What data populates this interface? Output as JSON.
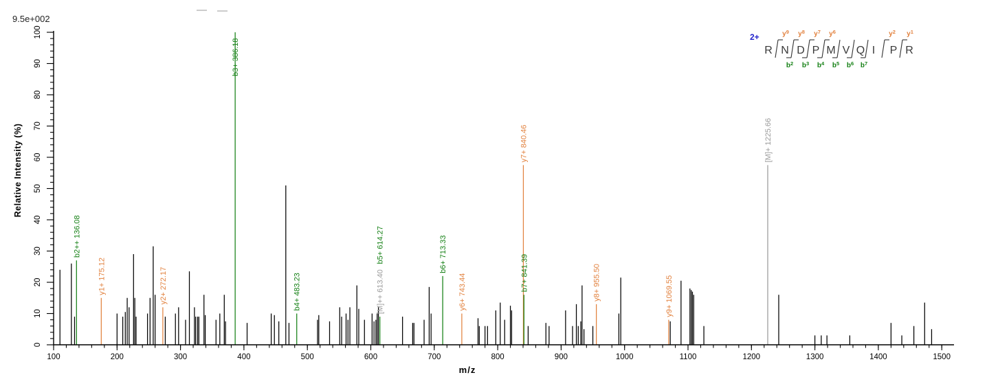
{
  "header": {
    "scale_label": "9.5e+002"
  },
  "chart_data": {
    "type": "bar",
    "subtype": "ms2-fragmentation-stick-spectrum",
    "title": "",
    "xlabel": "m/z",
    "ylabel": "Relative  Intensity (%)",
    "xlim": [
      100,
      1500
    ],
    "ylim": [
      0,
      100
    ],
    "x_major_tick": 100,
    "x_minor_tick": 20,
    "y_major_tick": 10,
    "y_minor_tick": 2,
    "grid": false,
    "intensity_scale_label": "9.5e+002",
    "colors": {
      "b": "#158015",
      "y": "#E2823F",
      "M": "#9B9B9B",
      "unassigned": "#000000"
    },
    "annotated_peaks": [
      {
        "mz": 136.08,
        "intensity": 27,
        "ion": "b",
        "labels": [
          {
            "text": "b2++ 136.08",
            "ion": "b"
          }
        ]
      },
      {
        "mz": 175.12,
        "intensity": 15,
        "ion": "y",
        "labels": [
          {
            "text": "y1+ 175.12",
            "ion": "y"
          }
        ]
      },
      {
        "mz": 272.17,
        "intensity": 12,
        "ion": "y",
        "labels": [
          {
            "text": "y2+ 272.17",
            "ion": "y"
          }
        ]
      },
      {
        "mz": 386.18,
        "intensity": 100,
        "ion": "b",
        "labels": [
          {
            "text": "b3+ 386.18",
            "ion": "b"
          }
        ]
      },
      {
        "mz": 483.23,
        "intensity": 10,
        "ion": "b",
        "labels": [
          {
            "text": "b4+ 483.23",
            "ion": "b"
          }
        ]
      },
      {
        "mz": 614.27,
        "intensity": 9,
        "ion": "b",
        "labels": [
          {
            "text": "[M]++ 613.40",
            "ion": "M"
          },
          {
            "text": "b5+ 614.27",
            "ion": "b"
          }
        ]
      },
      {
        "mz": 713.33,
        "intensity": 22,
        "ion": "b",
        "labels": [
          {
            "text": "b6+ 713.33",
            "ion": "b"
          }
        ]
      },
      {
        "mz": 743.44,
        "intensity": 10,
        "ion": "y",
        "labels": [
          {
            "text": "y6+ 743.44",
            "ion": "y"
          }
        ]
      },
      {
        "mz": 840.46,
        "intensity": 57.5,
        "ion": "y",
        "labels": [
          {
            "text": "y7+ 840.46",
            "ion": "y"
          }
        ]
      },
      {
        "mz": 841.39,
        "intensity": 16,
        "ion": "b",
        "labels": [
          {
            "text": "b7+ 841.39",
            "ion": "b"
          }
        ]
      },
      {
        "mz": 955.5,
        "intensity": 13,
        "ion": "y",
        "labels": [
          {
            "text": "y8+ 955.50",
            "ion": "y"
          }
        ]
      },
      {
        "mz": 1069.55,
        "intensity": 8,
        "ion": "y",
        "labels": [
          {
            "text": "y9+ 1069.55",
            "ion": "y"
          }
        ]
      },
      {
        "mz": 1225.66,
        "intensity": 57.5,
        "ion": "M",
        "labels": [
          {
            "text": "[M]+ 1225.66",
            "ion": "M"
          }
        ]
      }
    ],
    "peaks": [
      [
        110,
        24
      ],
      [
        128,
        26
      ],
      [
        133,
        9
      ],
      [
        200,
        10
      ],
      [
        209,
        9
      ],
      [
        213,
        10.5
      ],
      [
        216,
        15
      ],
      [
        219,
        12
      ],
      [
        226,
        29
      ],
      [
        228,
        15
      ],
      [
        230,
        9
      ],
      [
        248,
        10
      ],
      [
        252,
        15
      ],
      [
        257,
        31.5
      ],
      [
        260,
        16
      ],
      [
        276,
        9
      ],
      [
        292,
        10
      ],
      [
        297,
        12
      ],
      [
        308,
        8
      ],
      [
        314,
        23.5
      ],
      [
        322,
        12
      ],
      [
        324,
        9
      ],
      [
        327,
        9
      ],
      [
        329,
        9
      ],
      [
        337,
        16
      ],
      [
        339,
        9.5
      ],
      [
        356,
        8
      ],
      [
        362,
        10
      ],
      [
        369,
        16
      ],
      [
        371,
        7.5
      ],
      [
        405,
        7
      ],
      [
        443,
        10
      ],
      [
        448,
        9.5
      ],
      [
        455,
        7.5
      ],
      [
        466,
        51
      ],
      [
        471,
        7
      ],
      [
        516,
        8
      ],
      [
        518,
        9.5
      ],
      [
        535,
        7.5
      ],
      [
        551,
        12
      ],
      [
        554,
        9
      ],
      [
        561,
        10
      ],
      [
        564,
        8
      ],
      [
        567,
        12
      ],
      [
        578,
        19
      ],
      [
        581,
        11.5
      ],
      [
        590,
        8
      ],
      [
        602,
        10
      ],
      [
        605,
        7.5
      ],
      [
        608,
        8
      ],
      [
        610,
        10
      ],
      [
        612,
        12
      ],
      [
        650,
        9
      ],
      [
        666,
        7
      ],
      [
        668,
        7
      ],
      [
        684,
        8
      ],
      [
        692,
        18.5
      ],
      [
        695,
        10
      ],
      [
        769,
        8.5
      ],
      [
        771,
        6
      ],
      [
        780,
        6
      ],
      [
        784,
        6
      ],
      [
        797,
        11
      ],
      [
        804,
        13.5
      ],
      [
        811,
        8
      ],
      [
        820,
        12.5
      ],
      [
        822,
        11
      ],
      [
        848,
        6
      ],
      [
        876,
        7
      ],
      [
        881,
        6
      ],
      [
        907,
        11
      ],
      [
        918,
        6
      ],
      [
        924,
        13
      ],
      [
        927,
        6
      ],
      [
        931,
        7.5
      ],
      [
        933,
        19
      ],
      [
        936,
        5
      ],
      [
        950,
        6
      ],
      [
        991,
        10
      ],
      [
        994,
        21.5
      ],
      [
        1072,
        7.5
      ],
      [
        1089,
        20.5
      ],
      [
        1103,
        18
      ],
      [
        1105,
        17.5
      ],
      [
        1107,
        17
      ],
      [
        1109,
        16
      ],
      [
        1125,
        6
      ],
      [
        1243,
        16
      ],
      [
        1300,
        3
      ],
      [
        1310,
        3
      ],
      [
        1319,
        3
      ],
      [
        1355,
        3
      ],
      [
        1420,
        7
      ],
      [
        1437,
        3
      ],
      [
        1456,
        6
      ],
      [
        1473,
        13.5
      ],
      [
        1484,
        5
      ]
    ]
  },
  "sequence": {
    "charge_label": "2+",
    "residues": [
      "R",
      "N",
      "D",
      "P",
      "M",
      "V",
      "Q",
      "I",
      "P",
      "R"
    ],
    "top_fragments": [
      {
        "gap": 0,
        "label": "y9"
      },
      {
        "gap": 1,
        "label": "y8"
      },
      {
        "gap": 2,
        "label": "y7"
      },
      {
        "gap": 3,
        "label": "y6"
      },
      {
        "gap": 7,
        "label": "y2"
      },
      {
        "gap": 8,
        "label": "y1"
      }
    ],
    "bottom_fragments": [
      {
        "gap": 1,
        "label": "b2"
      },
      {
        "gap": 2,
        "label": "b3"
      },
      {
        "gap": 3,
        "label": "b4"
      },
      {
        "gap": 4,
        "label": "b5"
      },
      {
        "gap": 5,
        "label": "b6"
      },
      {
        "gap": 6,
        "label": "b7"
      }
    ],
    "colors": {
      "charge": "#2222CC",
      "y": "#E2823F",
      "b": "#158015",
      "residue": "#3A3A3A"
    }
  }
}
